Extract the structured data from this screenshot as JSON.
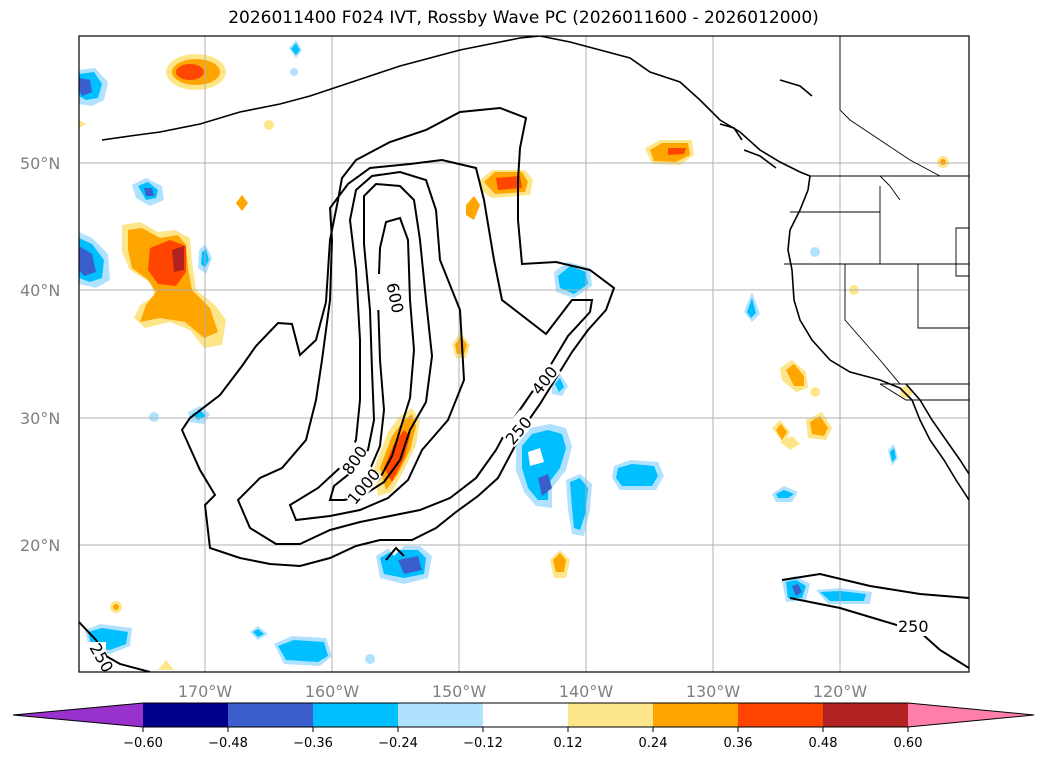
{
  "title": "2026011400 F024 IVT, Rossby Wave PC (2026011600 - 2026012000)",
  "map": {
    "lat_ticks": [
      "50°N",
      "40°N",
      "30°N",
      "20°N"
    ],
    "lon_ticks": [
      "170°W",
      "160°W",
      "150°W",
      "140°W",
      "130°W",
      "120°W"
    ],
    "gridlines": true,
    "contour_labels": [
      "600",
      "800",
      "1000",
      "400",
      "250",
      "250",
      "250"
    ]
  },
  "colorbar": {
    "orientation": "horizontal",
    "extend": "both",
    "ticks": [
      "−0.60",
      "−0.48",
      "−0.36",
      "−0.24",
      "−0.12",
      "0.12",
      "0.24",
      "0.36",
      "0.48",
      "0.60"
    ],
    "colors": [
      "#9932cc",
      "#00008b",
      "#3a5fcd",
      "#00bfff",
      "#b0e2ff",
      "#ffffff",
      "#fde68a",
      "#ffa500",
      "#ff4500",
      "#b22222",
      "#ff7fa8"
    ]
  }
}
